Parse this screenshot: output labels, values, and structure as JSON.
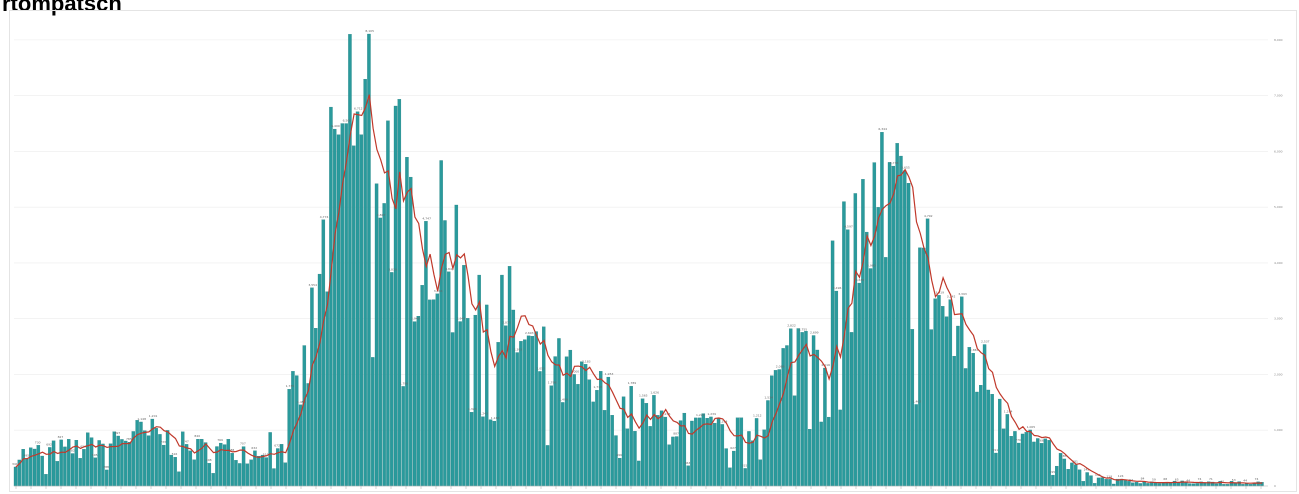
{
  "chart_data": {
    "type": "bar",
    "title": "rtompatsch",
    "ylim": [
      0,
      8500
    ],
    "yticks": [
      0,
      1000,
      2000,
      3000,
      4000,
      5000,
      6000,
      7000,
      8000
    ],
    "grid": true,
    "legend": "none",
    "colors": {
      "bar": "#2a9a9c",
      "bar_edge": "#1f7f80",
      "avg_line": "#c0392b",
      "grid": "#ececec"
    },
    "smooth_ranges": [
      {
        "x0": 0,
        "x1": 60,
        "y0": 550,
        "y1": 650
      },
      {
        "x0": 60,
        "x1": 105,
        "y0": 650,
        "y1": 900
      },
      {
        "x0": 105,
        "x1": 140,
        "y0": 900,
        "y1": 900
      },
      {
        "x0": 140,
        "x1": 175,
        "y0": 900,
        "y1": 650
      },
      {
        "x0": 175,
        "x1": 225,
        "y0": 650,
        "y1": 650
      },
      {
        "x0": 225,
        "x1": 240,
        "y0": 650,
        "y1": 600
      },
      {
        "x0": 240,
        "x1": 265,
        "y0": 600,
        "y1": 1000
      },
      {
        "x0": 265,
        "x1": 290,
        "y0": 1000,
        "y1": 2000
      },
      {
        "x0": 290,
        "x1": 320,
        "y0": 2000,
        "y1": 5500
      },
      {
        "x0": 320,
        "x1": 345,
        "y0": 5500,
        "y1": 7200
      },
      {
        "x0": 345,
        "x1": 365,
        "y0": 7200,
        "y1": 6200
      },
      {
        "x0": 365,
        "x1": 400,
        "y0": 6200,
        "y1": 4500
      },
      {
        "x0": 400,
        "x1": 440,
        "y0": 4500,
        "y1": 4100
      },
      {
        "x0": 440,
        "x1": 480,
        "y0": 4100,
        "y1": 3300
      },
      {
        "x0": 480,
        "x1": 520,
        "y0": 3300,
        "y1": 2200
      },
      {
        "x0": 520,
        "x1": 570,
        "y0": 2200,
        "y1": 1700
      },
      {
        "x0": 570,
        "x1": 620,
        "y0": 1700,
        "y1": 1300
      },
      {
        "x0": 620,
        "x1": 680,
        "y0": 1300,
        "y1": 1000
      },
      {
        "x0": 680,
        "x1": 730,
        "y0": 1000,
        "y1": 900
      },
      {
        "x0": 730,
        "x1": 760,
        "y0": 900,
        "y1": 1800
      },
      {
        "x0": 760,
        "x1": 800,
        "y0": 1800,
        "y1": 3100
      },
      {
        "x0": 800,
        "x1": 840,
        "y0": 3100,
        "y1": 4400
      },
      {
        "x0": 840,
        "x1": 870,
        "y0": 4400,
        "y1": 5200
      },
      {
        "x0": 870,
        "x1": 900,
        "y0": 5200,
        "y1": 4200
      },
      {
        "x0": 900,
        "x1": 940,
        "y0": 4200,
        "y1": 2700
      },
      {
        "x0": 940,
        "x1": 980,
        "y0": 2700,
        "y1": 1700
      },
      {
        "x0": 980,
        "x1": 1010,
        "y0": 1700,
        "y1": 900
      },
      {
        "x0": 1010,
        "x1": 1050,
        "y0": 900,
        "y1": 400
      },
      {
        "x0": 1050,
        "x1": 1080,
        "y0": 400,
        "y1": 130
      },
      {
        "x0": 1080,
        "x1": 1120,
        "y0": 130,
        "y1": 70
      },
      {
        "x0": 1120,
        "x1": 1268,
        "y0": 70,
        "y1": 60
      }
    ],
    "spikes": [
      {
        "x": 334,
        "value": 8100
      },
      {
        "x": 327,
        "value": 6500
      },
      {
        "x": 330,
        "value": 6500
      },
      {
        "x": 318,
        "value": 6400
      },
      {
        "x": 322,
        "value": 6300
      },
      {
        "x": 345,
        "value": 6300
      },
      {
        "x": 340,
        "value": 6100
      },
      {
        "x": 857,
        "value": 5800
      },
      {
        "x": 847,
        "value": 5500
      },
      {
        "x": 830,
        "value": 5100
      },
      {
        "x": 872,
        "value": 4100
      },
      {
        "x": 405,
        "value": 3600
      },
      {
        "x": 305,
        "value": 3800
      }
    ],
    "noise_amplitude": 0.38,
    "seed": 7
  }
}
